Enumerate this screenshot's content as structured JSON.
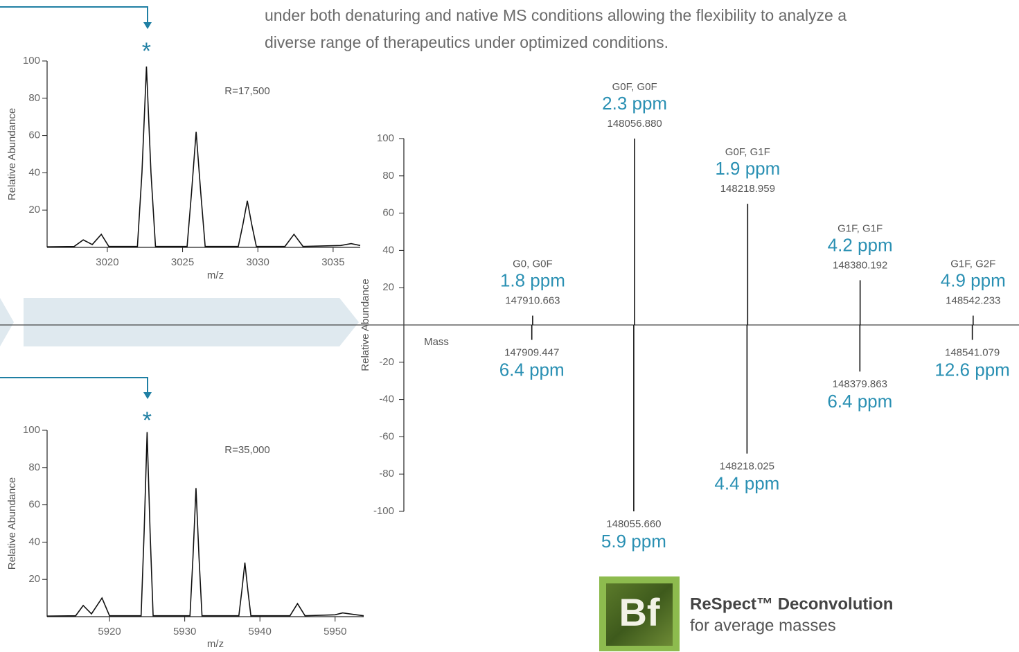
{
  "text": {
    "paragraph": [
      "under both denaturing and native MS conditions allowing the flexibility to analyze a",
      "diverse range of therapeutics under optimized conditions."
    ]
  },
  "chart_data": [
    {
      "type": "line",
      "x_label": "m/z",
      "y_label": "Relative Abundance",
      "annotation": "R=17,500",
      "marker": "*",
      "marker_color": "#1f7fa3",
      "color": "#111111",
      "xlim": [
        3016,
        3036.8
      ],
      "ylim": [
        0,
        100
      ],
      "xticks": [
        3020,
        3025,
        3030,
        3035
      ],
      "yticks": [
        20,
        40,
        60,
        80,
        100
      ],
      "x": [
        3016,
        3017.8,
        3018.4,
        3019.0,
        3019.6,
        3020.1,
        3022.0,
        3022.3,
        3022.6,
        3022.9,
        3023.2,
        3025.3,
        3025.6,
        3025.9,
        3026.2,
        3026.5,
        3028.7,
        3029.0,
        3029.3,
        3029.6,
        3029.9,
        3031.8,
        3032.4,
        3033.0,
        3035.5,
        3036.2,
        3036.8
      ],
      "values": [
        0.3,
        0.5,
        4,
        1.5,
        7,
        0.5,
        0.5,
        40,
        97,
        40,
        0.5,
        0.5,
        30,
        62,
        30,
        0.5,
        0.5,
        12,
        25,
        12,
        0.5,
        0.5,
        7,
        0.5,
        1,
        2,
        1
      ]
    },
    {
      "type": "line",
      "x_label": "m/z",
      "y_label": "Relative Abundance",
      "annotation": "R=35,000",
      "marker": "*",
      "marker_color": "#1f7fa3",
      "color": "#111111",
      "xlim": [
        5911.7,
        5953.8
      ],
      "ylim": [
        0,
        100
      ],
      "xticks": [
        5920,
        5930,
        5940,
        5950
      ],
      "yticks": [
        20,
        40,
        60,
        80,
        100
      ],
      "x": [
        5911.7,
        5915.5,
        5916.5,
        5917.6,
        5919.0,
        5920.0,
        5924.2,
        5924.6,
        5925.0,
        5925.4,
        5925.8,
        5930.7,
        5931.1,
        5931.5,
        5931.9,
        5932.3,
        5937.2,
        5937.6,
        5938.0,
        5938.4,
        5938.8,
        5944.0,
        5945.0,
        5946.0,
        5950.0,
        5951.0,
        5953.8
      ],
      "values": [
        0.3,
        0.5,
        6,
        1.5,
        10,
        0.5,
        0.5,
        45,
        99,
        45,
        0.5,
        0.5,
        32,
        69,
        32,
        0.5,
        0.5,
        14,
        29,
        14,
        0.5,
        0.5,
        7,
        0.5,
        1,
        2,
        0.5
      ]
    },
    {
      "type": "stick",
      "x_label": "Mass",
      "y_label": "Relative Abundance",
      "xlim": [
        147726,
        148608
      ],
      "ylim": [
        -100,
        100
      ],
      "yticks": [
        -100,
        -80,
        -60,
        -40,
        -20,
        20,
        40,
        60,
        80,
        100
      ],
      "series": [
        {
          "color": "#111111",
          "label_color": "#2a90b3",
          "x": [
            147910.663,
            148056.88,
            148218.959,
            148380.192,
            148542.233
          ],
          "x_labels": [
            "147910.663",
            "148056.880",
            "148218.959",
            "148380.192",
            "148542.233"
          ],
          "values": [
            5,
            100,
            65,
            24,
            5
          ],
          "labels": [
            "G0, G0F",
            "G0F, G0F",
            "G0F, G1F",
            "G1F, G1F",
            "G1F, G2F"
          ],
          "ppm": [
            1.8,
            2.3,
            1.9,
            4.2,
            4.9
          ],
          "ppm_labels": [
            "1.8 ppm",
            "2.3 ppm",
            "1.9 ppm",
            "4.2 ppm",
            "4.9 ppm"
          ]
        },
        {
          "color": "#111111",
          "label_color": "#2a90b3",
          "x": [
            147909.447,
            148055.66,
            148218.025,
            148379.863,
            148541.079
          ],
          "x_labels": [
            "147909.447",
            "148055.660",
            "148218.025",
            "148379.863",
            "148541.079"
          ],
          "values": [
            -8,
            -100,
            -69,
            -25,
            -8
          ],
          "ppm": [
            6.4,
            5.9,
            4.4,
            6.4,
            12.6
          ],
          "ppm_labels": [
            "6.4 ppm",
            "5.9 ppm",
            "4.4 ppm",
            "6.4 ppm",
            "12.6 ppm"
          ]
        }
      ]
    }
  ],
  "logo": {
    "mark": "Bf",
    "title": "ReSpect™ Deconvolution",
    "subtitle": "for average masses"
  }
}
